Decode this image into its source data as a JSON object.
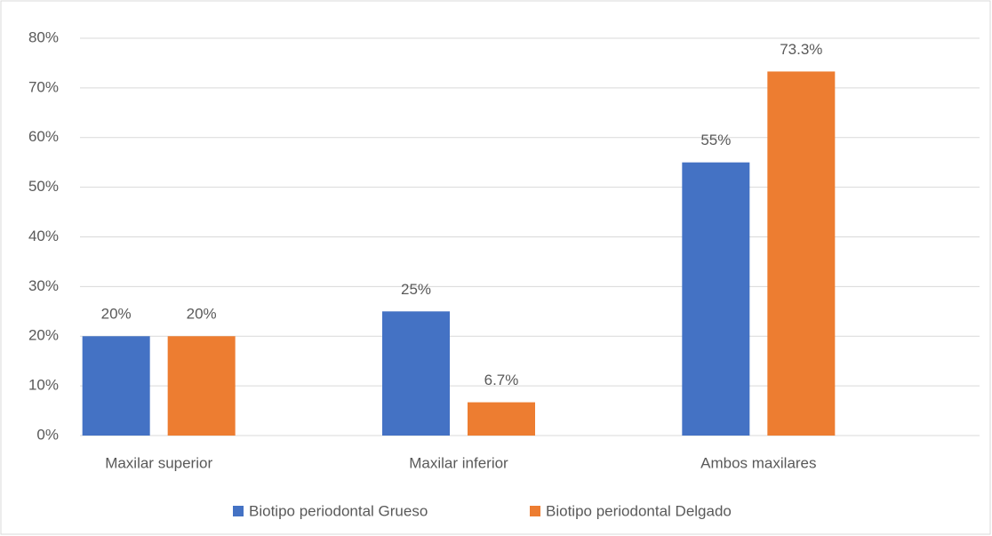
{
  "chart_data": {
    "type": "bar",
    "categories": [
      "Maxilar superior",
      "Maxilar inferior",
      "Ambos maxilares"
    ],
    "series": [
      {
        "name": "Biotipo periodontal Grueso",
        "color": "#4472c4",
        "values": [
          20,
          25,
          55
        ],
        "value_labels": [
          "20%",
          "25%",
          "55%"
        ]
      },
      {
        "name": "Biotipo periodontal Delgado",
        "color": "#ed7d31",
        "values": [
          20,
          6.7,
          73.3
        ],
        "value_labels": [
          "20%",
          "6.7%",
          "73.3%"
        ]
      }
    ],
    "ylim": [
      0,
      80
    ],
    "yticks": [
      {
        "value": 0,
        "label": "0%"
      },
      {
        "value": 10,
        "label": "10%"
      },
      {
        "value": 20,
        "label": "20%"
      },
      {
        "value": 30,
        "label": "30%"
      },
      {
        "value": 40,
        "label": "40%"
      },
      {
        "value": 50,
        "label": "50%"
      },
      {
        "value": 60,
        "label": "60%"
      },
      {
        "value": 70,
        "label": "70%"
      },
      {
        "value": 80,
        "label": "80%"
      }
    ],
    "grid": true,
    "legend": "bottom"
  }
}
